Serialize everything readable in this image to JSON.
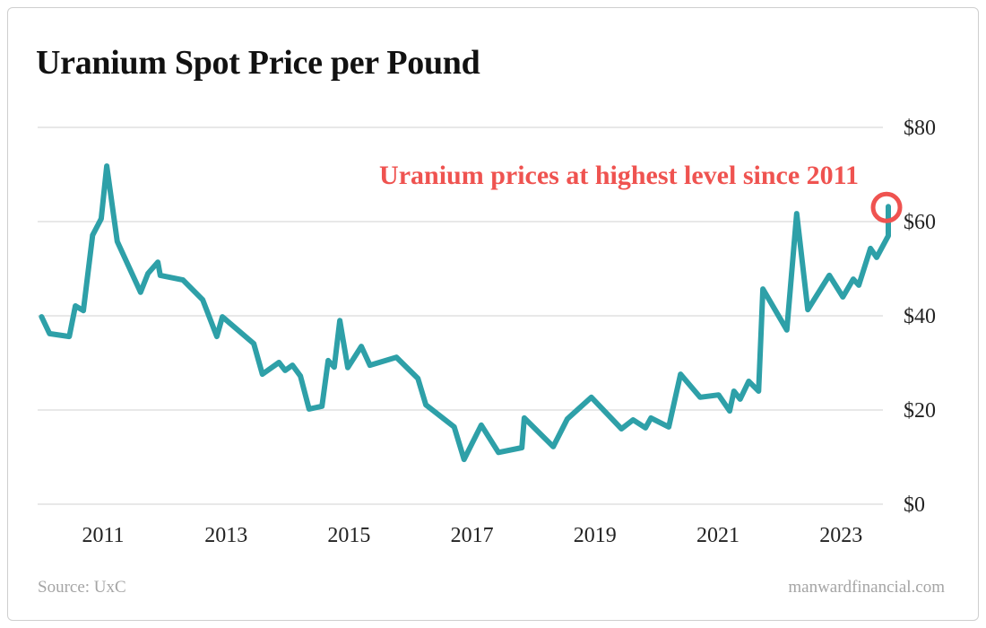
{
  "chart_data": {
    "type": "line",
    "title": "Uranium Spot Price per Pound",
    "annotation": "Uranium prices at highest level since 2011",
    "source": "Source: UxC",
    "brand": "manwardfinancial.com",
    "xlabel": "",
    "ylabel": "",
    "xlim": [
      2010.0,
      2023.8
    ],
    "ylim": [
      0,
      80
    ],
    "x_ticks": [
      2011,
      2013,
      2015,
      2017,
      2019,
      2021,
      2023
    ],
    "x_tick_labels": [
      "2011",
      "2013",
      "2015",
      "2017",
      "2019",
      "2021",
      "2023"
    ],
    "y_ticks": [
      0,
      20,
      40,
      60,
      80
    ],
    "y_tick_labels": [
      "$0",
      "$20",
      "$40",
      "$60",
      "$80"
    ],
    "grid": "horizontal",
    "colors": {
      "line": "#2ea0a8",
      "annotation": "#ef5350",
      "grid": "#d9d9d9"
    },
    "highlight": {
      "x": 2023.77,
      "y": 63.2
    },
    "series": [
      {
        "x": [
          2010.0,
          2010.13,
          2010.45,
          2010.55,
          2010.68,
          2010.83,
          2010.97,
          2011.06,
          2011.23,
          2011.61,
          2011.73,
          2011.89,
          2011.93,
          2012.3,
          2012.62,
          2012.85,
          2012.94,
          2013.45,
          2013.59,
          2013.86,
          2013.96,
          2014.08,
          2014.21,
          2014.35,
          2014.56,
          2014.66,
          2014.76,
          2014.85,
          2014.98,
          2015.2,
          2015.34,
          2015.77,
          2016.12,
          2016.25,
          2016.71,
          2016.87,
          2017.15,
          2017.43,
          2017.81,
          2017.85,
          2018.32,
          2018.55,
          2018.94,
          2019.43,
          2019.62,
          2019.82,
          2019.91,
          2020.2,
          2020.39,
          2020.71,
          2021.01,
          2021.19,
          2021.26,
          2021.36,
          2021.5,
          2021.66,
          2021.73,
          2022.12,
          2022.28,
          2022.46,
          2022.81,
          2023.03,
          2023.2,
          2023.29,
          2023.48,
          2023.58,
          2023.77,
          2023.77
        ],
        "y": [
          39.8,
          36.2,
          35.6,
          42.1,
          41.1,
          57.1,
          60.6,
          71.8,
          55.8,
          45.0,
          49.0,
          51.4,
          48.6,
          47.6,
          43.4,
          35.6,
          39.8,
          34.1,
          27.6,
          30.1,
          28.4,
          29.5,
          27.2,
          20.2,
          20.8,
          30.5,
          29.1,
          39.0,
          29.0,
          33.5,
          29.5,
          31.2,
          26.7,
          21.1,
          16.4,
          9.5,
          16.8,
          11.0,
          12.0,
          18.3,
          12.2,
          18.1,
          22.7,
          16.0,
          17.9,
          16.2,
          18.3,
          16.4,
          27.6,
          22.7,
          23.2,
          19.8,
          24.0,
          22.3,
          26.1,
          24.0,
          45.7,
          37.0,
          61.7,
          41.3,
          48.6,
          44.0,
          47.8,
          46.5,
          54.3,
          52.4,
          57.0,
          63.2
        ]
      }
    ]
  }
}
